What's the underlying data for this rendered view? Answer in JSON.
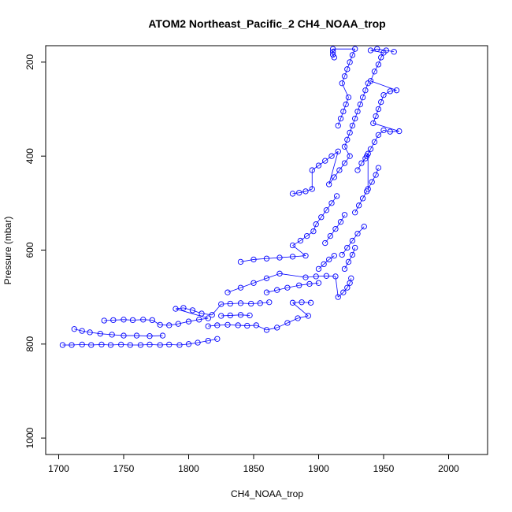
{
  "chart_data": {
    "type": "scatter",
    "title": "ATOM2 Northeast_Pacific_2 CH4_NOAA_trop",
    "xlabel": "CH4_NOAA_trop",
    "ylabel": "Pressure (mbar)",
    "xlim": [
      1690,
      2030
    ],
    "ylim": [
      1035,
      165
    ],
    "y_reversed": true,
    "x_ticks": [
      1700,
      1750,
      1800,
      1850,
      1900,
      1950,
      2000
    ],
    "y_ticks": [
      200,
      400,
      600,
      800,
      1000
    ],
    "grid": false,
    "marker": "open-circle",
    "connected_by_lines": true,
    "series_color": "#0000ff",
    "series": [
      {
        "points": [
          [
            1703,
            802
          ],
          [
            1710,
            802
          ],
          [
            1718,
            801
          ],
          [
            1725,
            802
          ],
          [
            1733,
            801
          ],
          [
            1740,
            802
          ],
          [
            1748,
            801
          ],
          [
            1755,
            802
          ],
          [
            1763,
            802
          ],
          [
            1770,
            801
          ],
          [
            1778,
            802
          ],
          [
            1785,
            801
          ],
          [
            1793,
            802
          ],
          [
            1800,
            800
          ],
          [
            1807,
            797
          ],
          [
            1815,
            793
          ],
          [
            1822,
            789
          ],
          [
            1712,
            768
          ],
          [
            1718,
            772
          ],
          [
            1724,
            775
          ],
          [
            1732,
            778
          ],
          [
            1741,
            780
          ],
          [
            1750,
            782
          ],
          [
            1760,
            782
          ],
          [
            1770,
            783
          ],
          [
            1780,
            782
          ],
          [
            1735,
            750
          ],
          [
            1742,
            749
          ],
          [
            1750,
            748
          ],
          [
            1757,
            749
          ],
          [
            1765,
            748
          ],
          [
            1772,
            749
          ],
          [
            1778,
            759
          ],
          [
            1785,
            760
          ],
          [
            1792,
            757
          ],
          [
            1800,
            752
          ],
          [
            1808,
            748
          ],
          [
            1815,
            745
          ],
          [
            1790,
            725
          ],
          [
            1796,
            723
          ],
          [
            1803,
            728
          ],
          [
            1810,
            735
          ],
          [
            1818,
            738
          ],
          [
            1825,
            715
          ],
          [
            1832,
            714
          ],
          [
            1840,
            713
          ],
          [
            1848,
            714
          ],
          [
            1855,
            713
          ],
          [
            1862,
            711
          ],
          [
            1825,
            740
          ],
          [
            1832,
            739
          ],
          [
            1840,
            738
          ],
          [
            1847,
            739
          ],
          [
            1815,
            762
          ],
          [
            1822,
            760
          ],
          [
            1830,
            759
          ],
          [
            1838,
            760
          ],
          [
            1845,
            761
          ],
          [
            1852,
            760
          ],
          [
            1860,
            770
          ],
          [
            1868,
            765
          ],
          [
            1876,
            755
          ],
          [
            1884,
            745
          ],
          [
            1892,
            740
          ],
          [
            1880,
            712
          ],
          [
            1887,
            711
          ],
          [
            1894,
            712
          ],
          [
            1860,
            690
          ],
          [
            1868,
            685
          ],
          [
            1876,
            680
          ],
          [
            1885,
            675
          ],
          [
            1893,
            672
          ],
          [
            1900,
            670
          ],
          [
            1830,
            690
          ],
          [
            1840,
            680
          ],
          [
            1850,
            670
          ],
          [
            1860,
            660
          ],
          [
            1870,
            650
          ],
          [
            1890,
            658
          ],
          [
            1898,
            656
          ],
          [
            1906,
            655
          ],
          [
            1913,
            656
          ],
          [
            1915,
            700
          ],
          [
            1919,
            690
          ],
          [
            1922,
            680
          ],
          [
            1924,
            670
          ],
          [
            1925,
            660
          ],
          [
            1840,
            625
          ],
          [
            1850,
            620
          ],
          [
            1860,
            618
          ],
          [
            1870,
            616
          ],
          [
            1880,
            614
          ],
          [
            1890,
            612
          ],
          [
            1880,
            590
          ],
          [
            1886,
            580
          ],
          [
            1891,
            570
          ],
          [
            1896,
            560
          ],
          [
            1898,
            545
          ],
          [
            1902,
            530
          ],
          [
            1906,
            515
          ],
          [
            1910,
            500
          ],
          [
            1914,
            485
          ],
          [
            1905,
            585
          ],
          [
            1909,
            570
          ],
          [
            1913,
            555
          ],
          [
            1917,
            540
          ],
          [
            1920,
            525
          ],
          [
            1918,
            610
          ],
          [
            1922,
            595
          ],
          [
            1926,
            580
          ],
          [
            1930,
            565
          ],
          [
            1935,
            550
          ],
          [
            1880,
            480
          ],
          [
            1885,
            478
          ],
          [
            1890,
            475
          ],
          [
            1895,
            470
          ],
          [
            1895,
            430
          ],
          [
            1900,
            420
          ],
          [
            1905,
            410
          ],
          [
            1910,
            400
          ],
          [
            1915,
            390
          ],
          [
            1908,
            460
          ],
          [
            1912,
            445
          ],
          [
            1916,
            430
          ],
          [
            1920,
            415
          ],
          [
            1924,
            400
          ],
          [
            1920,
            380
          ],
          [
            1922,
            365
          ],
          [
            1924,
            350
          ],
          [
            1926,
            335
          ],
          [
            1928,
            320
          ],
          [
            1930,
            305
          ],
          [
            1932,
            290
          ],
          [
            1934,
            275
          ],
          [
            1936,
            260
          ],
          [
            1938,
            245
          ],
          [
            1915,
            335
          ],
          [
            1917,
            320
          ],
          [
            1919,
            305
          ],
          [
            1921,
            290
          ],
          [
            1923,
            275
          ],
          [
            1918,
            245
          ],
          [
            1920,
            230
          ],
          [
            1922,
            215
          ],
          [
            1924,
            200
          ],
          [
            1926,
            185
          ],
          [
            1928,
            172
          ],
          [
            1911,
            172
          ],
          [
            1911,
            178
          ],
          [
            1911,
            184
          ],
          [
            1912,
            190
          ],
          [
            1937,
            400
          ],
          [
            1940,
            385
          ],
          [
            1943,
            370
          ],
          [
            1946,
            355
          ],
          [
            1950,
            345
          ],
          [
            1955,
            348
          ],
          [
            1962,
            347
          ],
          [
            1942,
            330
          ],
          [
            1944,
            315
          ],
          [
            1946,
            300
          ],
          [
            1948,
            285
          ],
          [
            1950,
            270
          ],
          [
            1955,
            262
          ],
          [
            1960,
            260
          ],
          [
            1940,
            240
          ],
          [
            1943,
            220
          ],
          [
            1946,
            205
          ],
          [
            1948,
            190
          ],
          [
            1950,
            180
          ],
          [
            1940,
            175
          ],
          [
            1945,
            172
          ],
          [
            1952,
            175
          ],
          [
            1958,
            178
          ],
          [
            1930,
            430
          ],
          [
            1933,
            415
          ],
          [
            1936,
            405
          ],
          [
            1938,
            395
          ],
          [
            1938,
            470
          ],
          [
            1941,
            455
          ],
          [
            1944,
            440
          ],
          [
            1946,
            425
          ],
          [
            1928,
            520
          ],
          [
            1931,
            505
          ],
          [
            1934,
            490
          ],
          [
            1937,
            475
          ],
          [
            1920,
            640
          ],
          [
            1923,
            625
          ],
          [
            1926,
            610
          ],
          [
            1928,
            595
          ],
          [
            1900,
            640
          ],
          [
            1904,
            630
          ],
          [
            1908,
            620
          ],
          [
            1912,
            612
          ]
        ]
      }
    ]
  }
}
